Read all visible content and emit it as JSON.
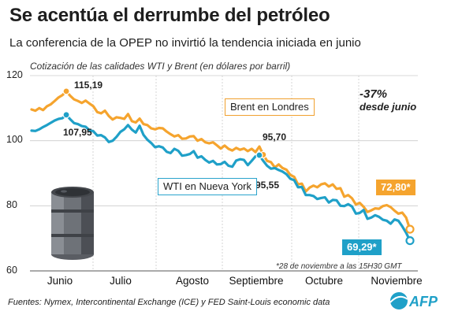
{
  "title": "Se acentúa el derrumbe del petróleo",
  "subtitle": "La conferencia de la OPEP no invirtió la tendencia iniciada en junio",
  "unit_note": "Cotización de las calidades WTI y Brent (en dólares por barril)",
  "change_pct": "-37%",
  "change_text": "desde junio",
  "footnote": "*28 de noviembre a las 15H30 GMT",
  "source": "Fuentes: Nymex, Intercontinental Exchange (ICE) y FED Saint-Louis economic data",
  "logo": "AFP",
  "colors": {
    "brent": "#f5a42e",
    "wti": "#1fa0c8",
    "grid": "#cccccc"
  },
  "chart_data": {
    "type": "line",
    "ylim": [
      60,
      120
    ],
    "yticks": [
      "60",
      "80",
      "100",
      "120"
    ],
    "months": [
      "Junio",
      "Julio",
      "Agosto",
      "Septiembre",
      "Octubre",
      "Noviembre"
    ],
    "series": [
      {
        "name": "Brent en Londres",
        "key": "brent",
        "color": "#f5a42e",
        "values": [
          109.6,
          109.2,
          110.0,
          109.4,
          110.6,
          111.2,
          112.2,
          113.3,
          114.0,
          115.19,
          113.8,
          112.7,
          112.2,
          111.6,
          112.3,
          111.4,
          110.6,
          108.8,
          108.4,
          109.2,
          107.6,
          106.5,
          107.2,
          107.0,
          106.7,
          108.2,
          106.0,
          105.6,
          106.8,
          105.1,
          104.8,
          103.8,
          103.5,
          103.9,
          103.8,
          102.8,
          102.0,
          101.3,
          101.7,
          100.6,
          100.7,
          101.3,
          101.4,
          100.0,
          100.5,
          99.5,
          99.2,
          99.5,
          98.6,
          97.6,
          98.5,
          97.5,
          97.0,
          97.8,
          97.2,
          97.6,
          96.8,
          97.5,
          96.5,
          98.2,
          95.7,
          93.8,
          93.4,
          91.8,
          92.7,
          91.6,
          91.1,
          89.5,
          88.9,
          86.6,
          86.8,
          84.4,
          85.6,
          86.2,
          85.7,
          86.6,
          86.9,
          85.9,
          86.6,
          85.2,
          85.4,
          82.8,
          83.3,
          82.3,
          80.4,
          80.9,
          79.7,
          78.1,
          78.6,
          79.2,
          79.1,
          79.9,
          80.2,
          79.6,
          78.5,
          77.6,
          77.9,
          76.4,
          72.8
        ],
        "labels": [
          {
            "text": "115,19",
            "index": 9
          },
          {
            "text": "95,70",
            "index": 60
          },
          {
            "text": "72,80*",
            "index": 98
          }
        ]
      },
      {
        "name": "WTI en Nueva York",
        "key": "wti",
        "color": "#1fa0c8",
        "values": [
          103.1,
          103.0,
          103.5,
          104.2,
          104.8,
          105.5,
          106.2,
          106.7,
          106.9,
          107.95,
          106.6,
          105.4,
          105.1,
          104.5,
          104.3,
          103.2,
          102.9,
          101.6,
          101.7,
          101.0,
          99.6,
          100.0,
          101.2,
          102.7,
          103.5,
          104.8,
          103.4,
          102.5,
          104.6,
          101.8,
          100.3,
          99.3,
          98.0,
          98.3,
          97.9,
          96.6,
          96.2,
          97.5,
          96.9,
          95.4,
          95.6,
          95.9,
          96.8,
          94.8,
          95.2,
          94.1,
          93.3,
          93.8,
          92.7,
          92.8,
          93.5,
          92.3,
          92.0,
          93.9,
          94.3,
          94.1,
          92.5,
          93.8,
          95.2,
          95.55,
          93.8,
          92.3,
          91.4,
          91.6,
          91.0,
          90.5,
          89.7,
          88.3,
          87.9,
          85.7,
          85.8,
          83.3,
          83.3,
          83.0,
          82.1,
          82.4,
          82.6,
          81.0,
          81.8,
          81.7,
          80.0,
          79.9,
          80.5,
          79.8,
          77.6,
          77.8,
          78.7,
          76.0,
          76.4,
          77.1,
          76.6,
          75.7,
          75.4,
          74.5,
          75.8,
          75.4,
          73.7,
          71.7,
          69.29
        ],
        "labels": [
          {
            "text": "107,95",
            "index": 9
          },
          {
            "text": "95,55",
            "index": 59
          },
          {
            "text": "69,29*",
            "index": 98
          }
        ]
      }
    ]
  }
}
